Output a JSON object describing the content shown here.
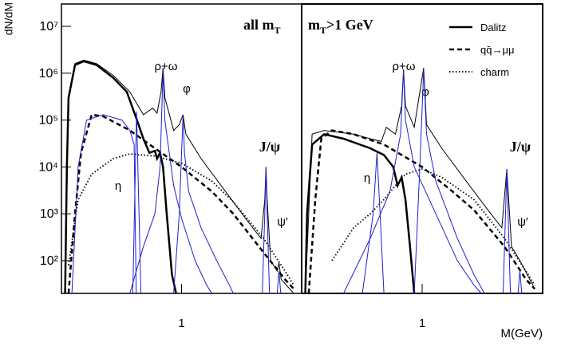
{
  "y_label": "dN/dM",
  "x_label": "M(GeV)",
  "chart_data": [
    {
      "type": "line",
      "xscale": "log",
      "yscale": "log",
      "xlim": [
        0.2,
        5
      ],
      "ylim": [
        20,
        30000000
      ],
      "xticks": [
        1
      ],
      "yticks": [
        {
          "value": 100,
          "label": "10²"
        },
        {
          "value": 1000,
          "label": "10³"
        },
        {
          "value": 10000,
          "label": "10⁴"
        },
        {
          "value": 100000,
          "label": "10⁵"
        },
        {
          "value": 1000000,
          "label": "10⁶"
        },
        {
          "value": 10000000,
          "label": "10⁷"
        }
      ],
      "panel_label": {
        "text": "all m",
        "sub": "T"
      },
      "annotations": [
        "ρ+ω",
        "φ",
        "η",
        "J/ψ",
        "ψ′"
      ],
      "series": [
        {
          "color": "#000000",
          "width": 1,
          "dash": "solid",
          "x": [
            0.21,
            0.22,
            0.24,
            0.27,
            0.32,
            0.4,
            0.5,
            0.6,
            0.68,
            0.72,
            0.76,
            0.78,
            0.8,
            0.9,
            0.97,
            1.02,
            1.06,
            1.3,
            1.8,
            2.5,
            2.9,
            3.05,
            3.1,
            3.15,
            3.3,
            3.6,
            3.69,
            3.8,
            4.5
          ],
          "values": [
            20,
            300000,
            1600000,
            1900000,
            1600000,
            900000,
            400000,
            130000,
            180000,
            140000,
            400000,
            1300000,
            300000,
            60000,
            80000,
            130000,
            50000,
            15000,
            3000,
            600,
            300,
            2000,
            10000,
            2000,
            100,
            60,
            90,
            40,
            20
          ]
        },
        {
          "color": "#000000",
          "width": 2.5,
          "dash": "solid",
          "x": [
            0.21,
            0.215,
            0.22,
            0.24,
            0.27,
            0.32,
            0.4,
            0.48,
            0.55,
            0.6,
            0.65,
            0.7,
            0.72,
            0.75,
            0.78,
            0.82,
            0.88,
            0.93
          ],
          "values": [
            20,
            10000,
            300000,
            1500000,
            1800000,
            1500000,
            800000,
            400000,
            100000,
            40000,
            20000,
            22000,
            15000,
            20000,
            10000,
            1000,
            50,
            20
          ]
        },
        {
          "color": "#000000",
          "width": 2.5,
          "dash": "dashed",
          "x": [
            0.22,
            0.24,
            0.26,
            0.3,
            0.35,
            0.5,
            0.7,
            1,
            1.5,
            2,
            3,
            4,
            4.5
          ],
          "values": [
            20,
            1000,
            20000,
            130000,
            120000,
            60000,
            25000,
            10000,
            3000,
            1000,
            150,
            40,
            25
          ]
        },
        {
          "color": "#000000",
          "width": 1.8,
          "dash": "dotted",
          "x": [
            0.22,
            0.25,
            0.3,
            0.4,
            0.5,
            0.7,
            1,
            1.5,
            2,
            3,
            4,
            4.5
          ],
          "values": [
            80,
            2000,
            7000,
            15000,
            19000,
            17000,
            12000,
            5000,
            1800,
            300,
            60,
            30
          ]
        },
        {
          "color": "#1f1fcf",
          "width": 1,
          "dash": "solid",
          "x": [
            0.23,
            0.25,
            0.28,
            0.35,
            0.45,
            0.5,
            0.53,
            0.545
          ],
          "values": [
            20,
            10000,
            100000,
            130000,
            100000,
            60000,
            30000,
            20
          ]
        },
        {
          "color": "#1f1fcf",
          "width": 1,
          "dash": "solid",
          "x": [
            0.52,
            0.547,
            0.58
          ],
          "values": [
            20,
            150000,
            20
          ]
        },
        {
          "color": "#1f1fcf",
          "width": 1,
          "dash": "solid",
          "x": [
            0.5,
            0.6,
            0.7,
            0.75,
            0.78,
            0.8,
            0.9,
            1,
            1.2,
            1.4,
            1.5
          ],
          "values": [
            20,
            200,
            1000,
            10000,
            1200000,
            100000,
            4000,
            800,
            100,
            30,
            20
          ]
        },
        {
          "color": "#1f1fcf",
          "width": 1,
          "dash": "solid",
          "x": [
            0.9,
            0.97,
            1,
            1.02,
            1.04,
            1.1,
            1.3,
            1.6,
            1.9,
            2
          ],
          "values": [
            20,
            1000,
            20000,
            120000,
            20000,
            3000,
            500,
            100,
            30,
            20
          ]
        },
        {
          "color": "#1f1fcf",
          "width": 1,
          "dash": "solid",
          "x": [
            2.95,
            3.05,
            3.1,
            3.15,
            3.25
          ],
          "values": [
            20,
            1000,
            9000,
            1000,
            20
          ]
        },
        {
          "color": "#1f1fcf",
          "width": 1,
          "dash": "solid",
          "x": [
            3.6,
            3.69,
            3.78
          ],
          "values": [
            20,
            60,
            20
          ]
        }
      ]
    },
    {
      "type": "line",
      "xscale": "log",
      "yscale": "log",
      "xlim": [
        0.2,
        5
      ],
      "ylim": [
        20,
        30000000
      ],
      "xticks": [
        1
      ],
      "panel_label": {
        "text": "m",
        "sub": "T",
        "rest": ">1 GeV"
      },
      "annotations": [
        "ρ+ω",
        "φ",
        "η",
        "J/ψ",
        "ψ′"
      ],
      "legend": "upper right",
      "series": [
        {
          "color": "#000000",
          "width": 1,
          "dash": "solid",
          "x": [
            0.21,
            0.23,
            0.27,
            0.4,
            0.5,
            0.58,
            0.62,
            0.7,
            0.76,
            0.78,
            0.8,
            0.9,
            1.02,
            1.06,
            1.3,
            1.8,
            2.5,
            2.9,
            3.1,
            3.3,
            3.69,
            4.5
          ],
          "values": [
            20,
            50000,
            60000,
            50000,
            40000,
            35000,
            70000,
            50000,
            200000,
            1200000,
            200000,
            70000,
            1300000,
            80000,
            25000,
            5000,
            1000,
            500,
            9000,
            200,
            100,
            25
          ]
        },
        {
          "name": "Dalitz",
          "color": "#000000",
          "width": 2.5,
          "dash": "solid",
          "x": [
            0.21,
            0.215,
            0.23,
            0.27,
            0.35,
            0.5,
            0.6,
            0.68,
            0.72,
            0.76,
            0.8,
            0.85,
            0.9
          ],
          "values": [
            20,
            1000,
            30000,
            50000,
            40000,
            25000,
            18000,
            10000,
            4000,
            6000,
            2000,
            200,
            20
          ]
        },
        {
          "name": "qq̄→μμ",
          "color": "#000000",
          "width": 2.5,
          "dash": "dashed",
          "x": [
            0.22,
            0.24,
            0.26,
            0.3,
            0.4,
            0.6,
            1,
            1.5,
            2,
            3,
            4,
            4.5
          ],
          "values": [
            20,
            2000,
            40000,
            60000,
            50000,
            30000,
            10000,
            3000,
            1200,
            200,
            40,
            25
          ]
        },
        {
          "name": "charm",
          "color": "#000000",
          "width": 1.8,
          "dash": "dotted",
          "x": [
            0.3,
            0.4,
            0.5,
            0.6,
            0.7,
            0.8,
            1,
            1.3,
            2,
            3,
            4,
            4.5
          ],
          "values": [
            100,
            500,
            1000,
            2000,
            4000,
            7000,
            9000,
            6000,
            2000,
            300,
            60,
            30
          ]
        },
        {
          "color": "#1f1fcf",
          "width": 1,
          "dash": "solid",
          "x": [
            0.45,
            0.52,
            0.547,
            0.57,
            0.6
          ],
          "values": [
            20,
            1000,
            20000,
            1000,
            20
          ]
        },
        {
          "color": "#1f1fcf",
          "width": 1,
          "dash": "solid",
          "x": [
            0.35,
            0.5,
            0.65,
            0.75,
            0.78,
            0.8,
            0.9,
            1.2,
            1.6,
            2,
            2.2
          ],
          "values": [
            20,
            300,
            3000,
            50000,
            1200000,
            100000,
            10000,
            1000,
            100,
            30,
            20
          ]
        },
        {
          "color": "#1f1fcf",
          "width": 1,
          "dash": "solid",
          "x": [
            0.9,
            0.97,
            1.02,
            1.06,
            1.2,
            1.6,
            2,
            2.3
          ],
          "values": [
            20,
            10000,
            1200000,
            50000,
            5000,
            300,
            50,
            20
          ]
        },
        {
          "color": "#1f1fcf",
          "width": 1,
          "dash": "solid",
          "x": [
            2.95,
            3.1,
            3.25
          ],
          "values": [
            20,
            9000,
            20
          ]
        },
        {
          "color": "#1f1fcf",
          "width": 1,
          "dash": "solid",
          "x": [
            3.6,
            3.69,
            3.78
          ],
          "values": [
            20,
            60,
            20
          ]
        }
      ]
    }
  ]
}
